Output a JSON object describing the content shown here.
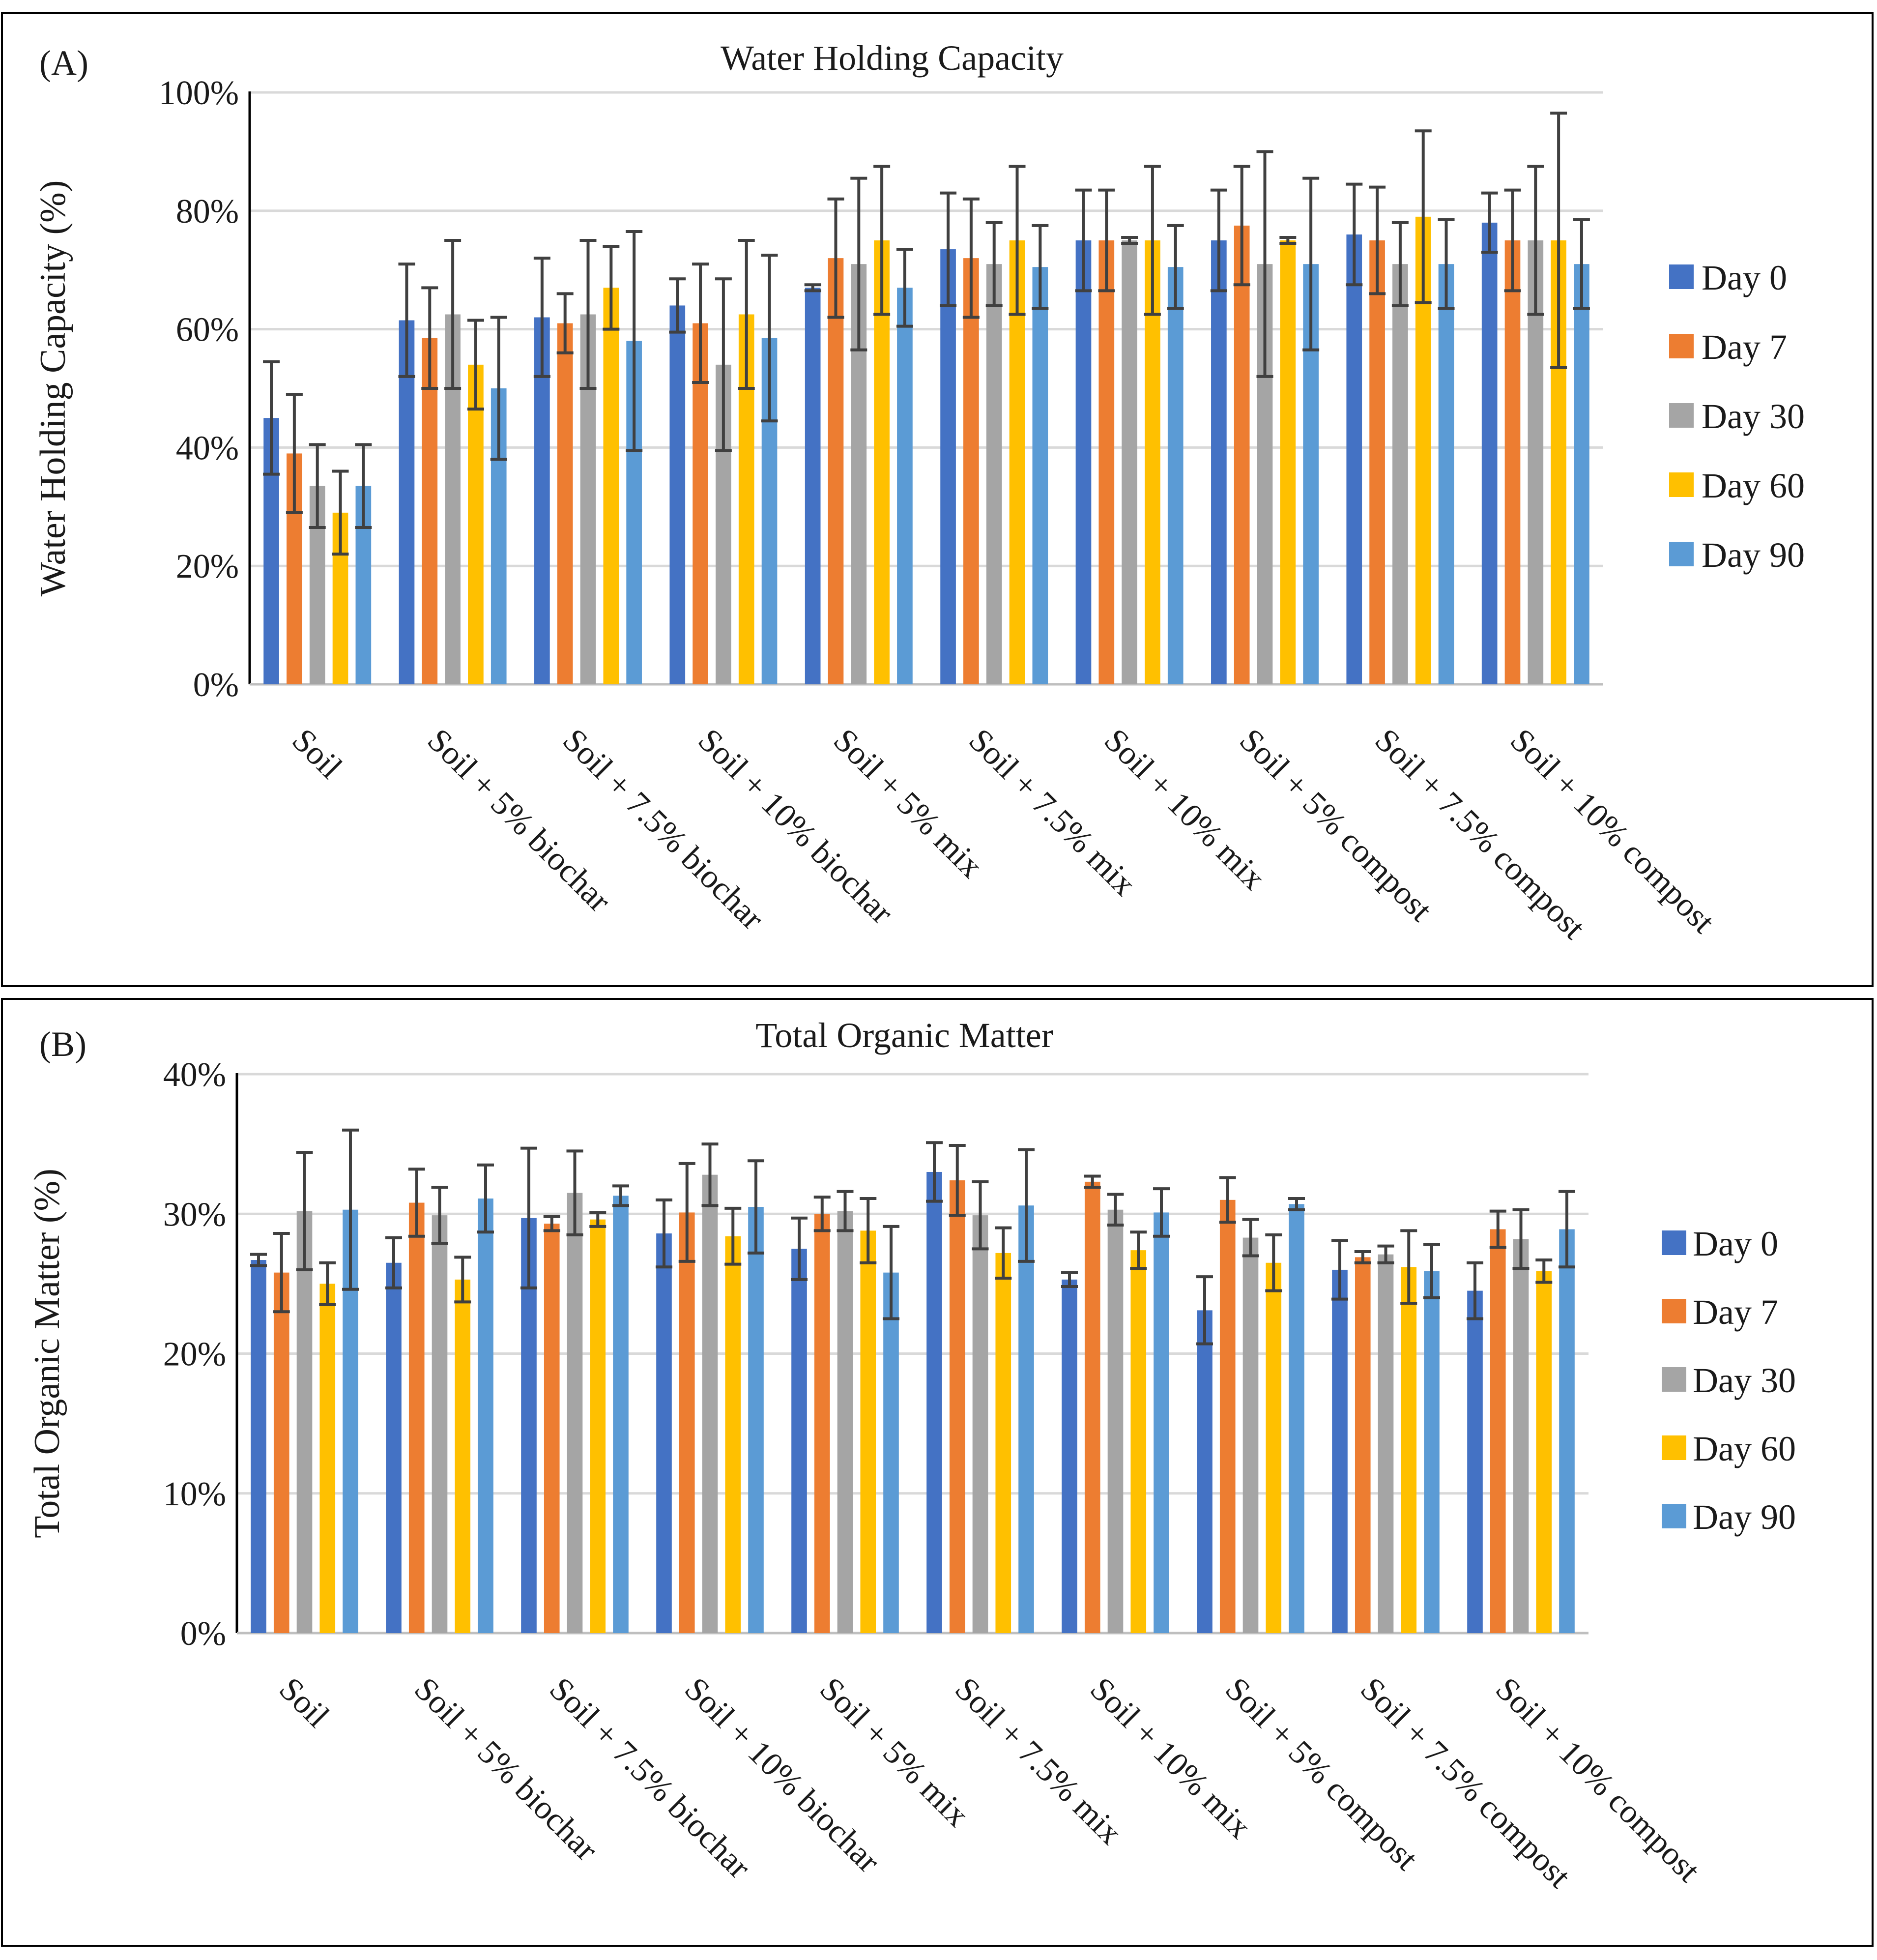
{
  "panels": [
    {
      "panel_label": "(A)",
      "title": "Water Holding Capacity",
      "ylabel": "Water Holding Capacity (%)",
      "tick_labels": [
        "0%",
        "20%",
        "40%",
        "60%",
        "80%",
        "100%"
      ]
    },
    {
      "panel_label": "(B)",
      "title": "Total Organic Matter",
      "ylabel": "Total Organic Matter (%)",
      "tick_labels": [
        "0%",
        "10%",
        "20%",
        "30%",
        "40%"
      ]
    }
  ],
  "legend": [
    "Day 0",
    "Day 7",
    "Day 30",
    "Day 60",
    "Day 90"
  ],
  "colors": {
    "series": [
      "#4472C4",
      "#ED7D31",
      "#A5A5A5",
      "#FFC000",
      "#5B9BD5"
    ],
    "error_bar": "#404040",
    "grid": "#d9d9d9",
    "frame": "#000000"
  },
  "chart_data": [
    {
      "type": "bar",
      "title": "Water Holding Capacity",
      "xlabel": "",
      "ylabel": "Water Holding Capacity (%)",
      "ylim": [
        0,
        100
      ],
      "y_unit": "%",
      "grid": true,
      "legend_position": "right",
      "categories": [
        "Soil",
        "Soil + 5% biochar",
        "Soil + 7.5% biochar",
        "Soil + 10% biochar",
        "Soil + 5% mix",
        "Soil + 7.5% mix",
        "Soil + 10% mix",
        "Soil + 5% compost",
        "Soil + 7.5% compost",
        "Soil + 10% compost"
      ],
      "series": [
        {
          "name": "Day 0",
          "values": [
            45,
            61.5,
            62,
            64,
            67,
            73.5,
            75,
            75,
            76,
            78
          ],
          "errors": [
            9.5,
            9.5,
            10,
            4.5,
            0.5,
            9.5,
            8.5,
            8.5,
            8.5,
            5
          ]
        },
        {
          "name": "Day 7",
          "values": [
            39,
            58.5,
            61,
            61,
            72,
            72,
            75,
            77.5,
            75,
            75
          ],
          "errors": [
            10,
            8.5,
            5,
            10,
            10,
            10,
            8.5,
            10,
            9,
            8.5
          ]
        },
        {
          "name": "Day 30",
          "values": [
            33.5,
            62.5,
            62.5,
            54,
            71,
            71,
            75,
            71,
            71,
            75
          ],
          "errors": [
            7,
            12.5,
            12.5,
            14.5,
            14.5,
            7,
            0.5,
            19,
            7,
            12.5
          ]
        },
        {
          "name": "Day 60",
          "values": [
            29,
            54,
            67,
            62.5,
            75,
            75,
            75,
            75,
            79,
            75
          ],
          "errors": [
            7,
            7.5,
            7,
            12.5,
            12.5,
            12.5,
            12.5,
            0.5,
            14.5,
            21.5
          ]
        },
        {
          "name": "Day 90",
          "values": [
            33.5,
            50,
            58,
            58.5,
            67,
            70.5,
            70.5,
            71,
            71,
            71
          ],
          "errors": [
            7,
            12,
            18.5,
            14,
            6.5,
            7,
            7,
            14.5,
            7.5,
            7.5
          ]
        }
      ]
    },
    {
      "type": "bar",
      "title": "Total Organic Matter",
      "xlabel": "",
      "ylabel": "Total Organic Matter (%)",
      "ylim": [
        0,
        40
      ],
      "y_unit": "%",
      "grid": true,
      "legend_position": "right",
      "categories": [
        "Soil",
        "Soil + 5% biochar",
        "Soil + 7.5% biochar",
        "Soil + 10% biochar",
        "Soil + 5% mix",
        "Soil + 7.5% mix",
        "Soil + 10% mix",
        "Soil + 5% compost",
        "Soil + 7.5% compost",
        "Soil + 10% compost"
      ],
      "series": [
        {
          "name": "Day 0",
          "values": [
            26.7,
            26.5,
            29.7,
            28.6,
            27.5,
            33,
            25.3,
            23.1,
            26,
            24.5
          ],
          "errors": [
            0.4,
            1.8,
            5,
            2.4,
            2.2,
            2.1,
            0.5,
            2.4,
            2.1,
            2
          ]
        },
        {
          "name": "Day 7",
          "values": [
            25.8,
            30.8,
            29.3,
            30.1,
            30,
            32.4,
            32.3,
            31,
            26.9,
            28.9
          ],
          "errors": [
            2.8,
            2.4,
            0.5,
            3.5,
            1.2,
            2.5,
            0.4,
            1.6,
            0.4,
            1.3
          ]
        },
        {
          "name": "Day 30",
          "values": [
            30.2,
            29.9,
            31.5,
            32.8,
            30.2,
            29.9,
            30.3,
            28.3,
            27.1,
            28.2
          ],
          "errors": [
            4.2,
            2,
            3,
            2.2,
            1.4,
            2.4,
            1.1,
            1.3,
            0.6,
            2.1
          ]
        },
        {
          "name": "Day 60",
          "values": [
            25,
            25.3,
            29.6,
            28.4,
            28.8,
            27.2,
            27.4,
            26.5,
            26.2,
            25.9
          ],
          "errors": [
            1.5,
            1.6,
            0.5,
            2,
            2.3,
            1.8,
            1.3,
            2,
            2.6,
            0.8
          ]
        },
        {
          "name": "Day 90",
          "values": [
            30.3,
            31.1,
            31.3,
            30.5,
            25.8,
            30.6,
            30.1,
            30.7,
            25.9,
            28.9
          ],
          "errors": [
            5.7,
            2.4,
            0.7,
            3.3,
            3.3,
            4,
            1.7,
            0.4,
            1.9,
            2.7
          ]
        }
      ]
    }
  ]
}
